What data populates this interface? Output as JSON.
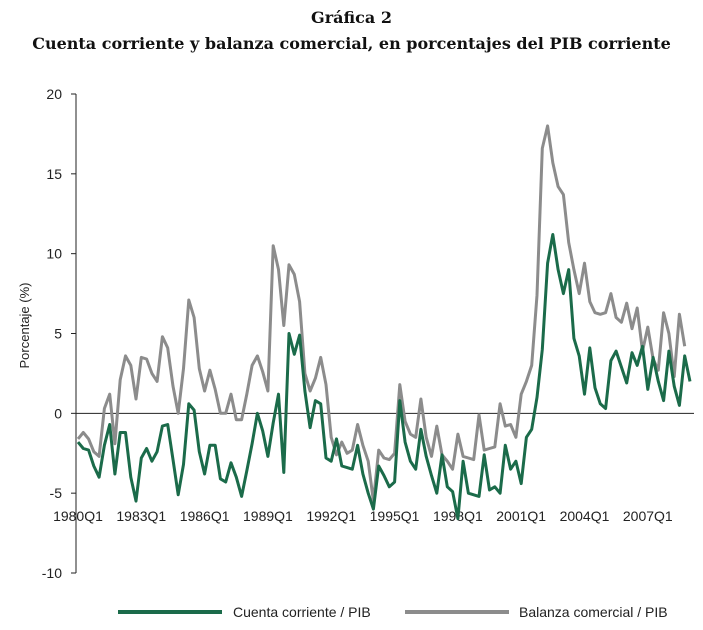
{
  "chart_data": {
    "type": "line",
    "title": "Gráfica 2",
    "subtitle": "Cuenta corriente y balanza comercial, en porcentajes del PIB corriente",
    "ylabel": "Porcentaje (%)",
    "xlabel": "",
    "ylim": [
      -10,
      20
    ],
    "yticks": [
      20,
      15,
      10,
      5,
      0,
      -5,
      -10
    ],
    "xtick_labels": [
      "1980Q1",
      "1983Q1",
      "1986Q1",
      "1989Q1",
      "1992Q1",
      "1995Q1",
      "1998Q1",
      "2001Q1",
      "2004Q1",
      "2007Q1"
    ],
    "legend_position": "bottom",
    "series": [
      {
        "name": "Cuenta corriente / PIB",
        "color": "#1b6b4a",
        "values": [
          -1.8,
          -2.2,
          -2.3,
          -3.3,
          -4.0,
          -2.0,
          -0.7,
          -3.8,
          -1.2,
          -1.2,
          -4.0,
          -5.5,
          -2.8,
          -2.2,
          -3.0,
          -2.4,
          -0.8,
          -0.7,
          -2.9,
          -5.1,
          -3.2,
          0.6,
          0.2,
          -2.4,
          -3.8,
          -2.0,
          -2.0,
          -4.1,
          -4.3,
          -3.1,
          -4.0,
          -5.2,
          -3.6,
          -1.9,
          0.0,
          -1.1,
          -2.7,
          -0.6,
          1.2,
          -3.7,
          5.0,
          3.7,
          4.9,
          1.4,
          -0.9,
          0.8,
          0.6,
          -2.8,
          -3.0,
          -1.6,
          -3.3,
          -3.4,
          -3.5,
          -2.0,
          -3.8,
          -5.0,
          -6.0,
          -3.3,
          -3.9,
          -4.6,
          -4.3,
          0.8,
          -1.8,
          -3.0,
          -3.5,
          -1.0,
          -2.7,
          -3.9,
          -5.0,
          -2.6,
          -4.6,
          -4.9,
          -6.6,
          -3.0,
          -5.0,
          -5.1,
          -5.2,
          -2.6,
          -4.8,
          -4.6,
          -5.0,
          -2.0,
          -3.5,
          -3.0,
          -4.4,
          -1.5,
          -1.0,
          1.0,
          4.0,
          9.4,
          11.2,
          9.0,
          7.5,
          9.0,
          4.7,
          3.6,
          1.2,
          4.1,
          1.6,
          0.6,
          0.3,
          3.3,
          3.9,
          2.9,
          1.9,
          3.8,
          3.0,
          4.2,
          1.5,
          3.5,
          2.0,
          0.8,
          3.9,
          1.7,
          0.5,
          3.6,
          2.0
        ]
      },
      {
        "name": "Balanza comercial / PIB",
        "color": "#8c8c8c",
        "values": [
          -1.6,
          -1.2,
          -1.6,
          -2.4,
          -2.7,
          0.3,
          1.2,
          -1.9,
          2.1,
          3.6,
          3.0,
          0.9,
          3.5,
          3.4,
          2.5,
          2.0,
          4.8,
          4.1,
          1.7,
          0.0,
          2.8,
          7.1,
          6.0,
          2.8,
          1.4,
          2.7,
          1.5,
          0.0,
          0.0,
          1.2,
          -0.4,
          -0.4,
          1.2,
          3.0,
          3.6,
          2.6,
          1.4,
          10.5,
          9.0,
          5.5,
          9.3,
          8.7,
          7.0,
          2.5,
          1.4,
          2.2,
          3.5,
          1.8,
          -1.5,
          -2.6,
          -1.8,
          -2.5,
          -2.3,
          -0.7,
          -2.0,
          -3.0,
          -5.5,
          -2.3,
          -2.8,
          -2.9,
          -2.5,
          1.8,
          -0.5,
          -1.3,
          -1.5,
          0.9,
          -1.5,
          -2.7,
          -0.8,
          -2.6,
          -3.0,
          -3.5,
          -1.3,
          -2.7,
          -2.8,
          -2.9,
          -0.1,
          -2.3,
          -2.2,
          -2.1,
          0.6,
          -0.8,
          -0.7,
          -1.5,
          1.2,
          2.0,
          3.0,
          7.4,
          16.6,
          18.0,
          15.7,
          14.2,
          13.7,
          10.7,
          9.0,
          7.5,
          9.4,
          7.0,
          6.3,
          6.2,
          6.3,
          7.5,
          6.0,
          5.7,
          6.9,
          5.3,
          6.6,
          3.9,
          5.4,
          3.4,
          2.7,
          6.3,
          5.0,
          2.3,
          6.2,
          4.2
        ]
      }
    ]
  }
}
